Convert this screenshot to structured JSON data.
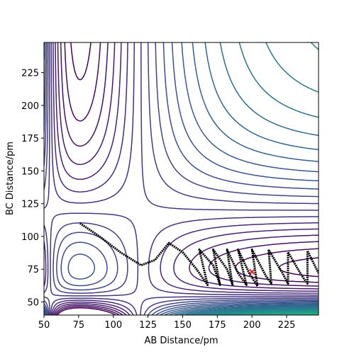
{
  "chart_data": {
    "type": "line",
    "xlabel": "AB Distance/pm",
    "ylabel": "BC Distance/pm",
    "xlim": [
      50,
      248
    ],
    "ylim": [
      40,
      248
    ],
    "xticks": [
      50,
      75,
      100,
      125,
      150,
      175,
      200,
      225
    ],
    "yticks": [
      50,
      75,
      100,
      125,
      150,
      175,
      200,
      225
    ],
    "series": [
      {
        "color": "#000000",
        "x": [
          76,
          90,
          105,
          120,
          130,
          140,
          150,
          160,
          168,
          162,
          172,
          177,
          172,
          182,
          186,
          182,
          190,
          196,
          190,
          198,
          204,
          200,
          210,
          214,
          212,
          222,
          226,
          226,
          236,
          240,
          240,
          248
        ],
        "values": [
          110,
          100,
          88,
          78,
          82,
          95,
          88,
          75,
          63,
          90,
          78,
          63,
          90,
          75,
          63,
          90,
          72,
          63,
          90,
          72,
          62,
          90,
          70,
          64,
          90,
          72,
          64,
          88,
          70,
          64,
          89,
          72
        ]
      },
      {
        "color": "#d62728",
        "marker": "x",
        "x": [
          200
        ],
        "values": [
          73
        ]
      }
    ]
  }
}
